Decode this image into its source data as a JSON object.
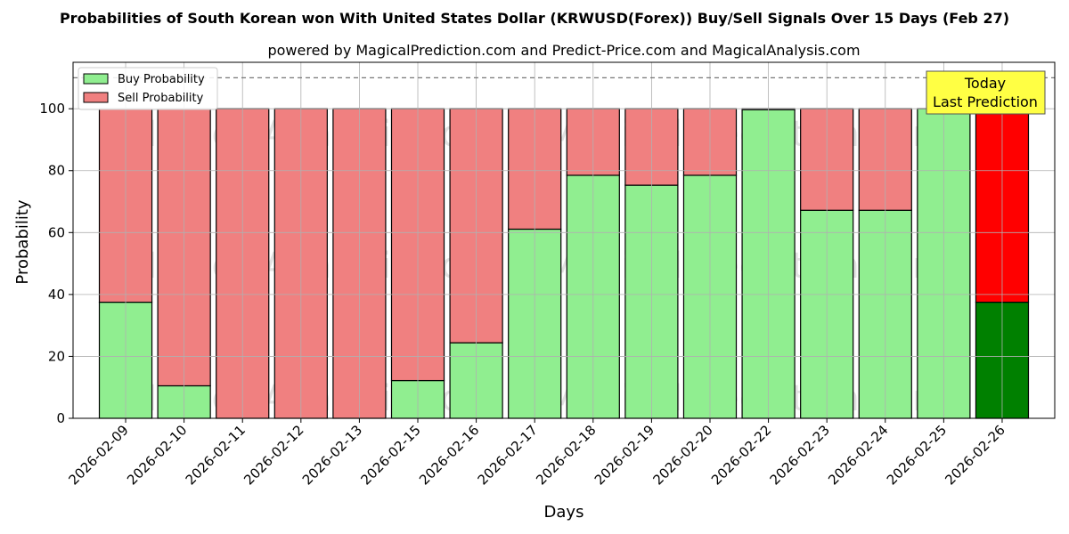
{
  "chart_data": {
    "type": "bar",
    "stacked": true,
    "title": "Probabilities of South Korean won With United States Dollar (KRWUSD(Forex)) Buy/Sell Signals Over 15 Days (Feb 27)",
    "subtitle": "powered by MagicalPrediction.com and Predict-Price.com and MagicalAnalysis.com",
    "xlabel": "Days",
    "ylabel": "Probability",
    "ylim": [
      0,
      115
    ],
    "yticks": [
      0,
      20,
      40,
      60,
      80,
      100
    ],
    "grid": true,
    "legend_position": "top-left",
    "reference_line": 110,
    "categories": [
      "2026-02-09",
      "2026-02-10",
      "2026-02-11",
      "2026-02-12",
      "2026-02-13",
      "2026-02-15",
      "2026-02-16",
      "2026-02-17",
      "2026-02-18",
      "2026-02-19",
      "2026-02-20",
      "2026-02-22",
      "2026-02-23",
      "2026-02-24",
      "2026-02-25",
      "2026-02-26"
    ],
    "series": [
      {
        "name": "Buy Probability",
        "color": "#90ee90",
        "highlight_color": "#008000",
        "values": [
          37.5,
          10.5,
          0,
          0,
          0,
          12.2,
          24.4,
          61.1,
          78.5,
          75.3,
          78.5,
          99.7,
          67.2,
          67.2,
          100,
          37.5
        ]
      },
      {
        "name": "Sell Probability",
        "color": "#f08080",
        "highlight_color": "#ff0000",
        "values": [
          62.5,
          89.5,
          100,
          100,
          100,
          87.8,
          75.6,
          38.9,
          21.5,
          24.7,
          21.5,
          0.3,
          32.8,
          32.8,
          0,
          62.5
        ]
      }
    ],
    "highlight_index": 15,
    "annotation": {
      "lines": [
        "Today",
        "Last Prediction"
      ],
      "background": "#ffff44"
    },
    "watermarks": [
      "MagicalAnalysis.com",
      "MagicalPrediction.com"
    ]
  }
}
